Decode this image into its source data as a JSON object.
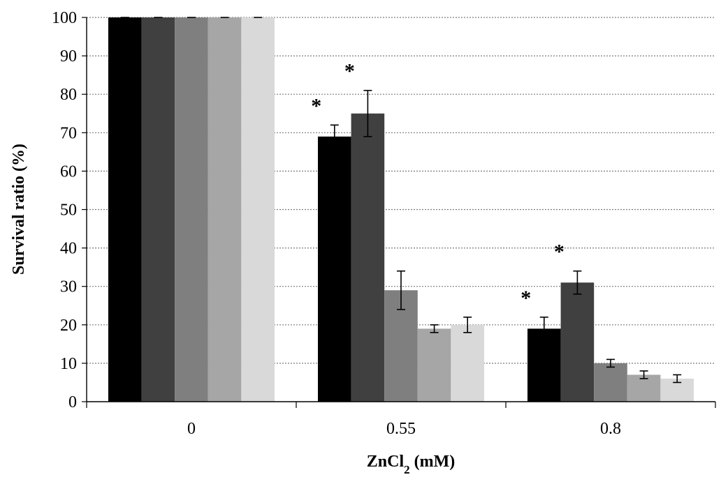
{
  "chart_data": {
    "type": "bar",
    "categories": [
      "0",
      "0.55",
      "0.8"
    ],
    "series": [
      {
        "values": [
          100,
          69,
          19
        ],
        "errors": [
          0,
          3,
          3
        ],
        "color": "#000000"
      },
      {
        "values": [
          100,
          75,
          31
        ],
        "errors": [
          0,
          6,
          3
        ],
        "color": "#404040"
      },
      {
        "values": [
          100,
          29,
          10
        ],
        "errors": [
          0,
          5,
          1
        ],
        "color": "#7f7f7f"
      },
      {
        "values": [
          100,
          19,
          7
        ],
        "errors": [
          0,
          1,
          1
        ],
        "color": "#a6a6a6"
      },
      {
        "values": [
          100,
          20,
          6
        ],
        "errors": [
          0,
          2,
          1
        ],
        "color": "#d9d9d9"
      }
    ],
    "significance": [
      {
        "category": "0.55",
        "series_index": 0,
        "mark": "*"
      },
      {
        "category": "0.55",
        "series_index": 1,
        "mark": "*"
      },
      {
        "category": "0.8",
        "series_index": 0,
        "mark": "*"
      },
      {
        "category": "0.8",
        "series_index": 1,
        "mark": "*"
      }
    ],
    "xlabel": {
      "main": "ZnCl",
      "sub": "2",
      "suffix": " (mM)"
    },
    "ylabel": "Survival ratio (%)",
    "ylim": [
      0,
      100
    ],
    "yticks": [
      0,
      10,
      20,
      30,
      40,
      50,
      60,
      70,
      80,
      90,
      100
    ],
    "grid": "horizontal dotted",
    "legend": "none"
  }
}
